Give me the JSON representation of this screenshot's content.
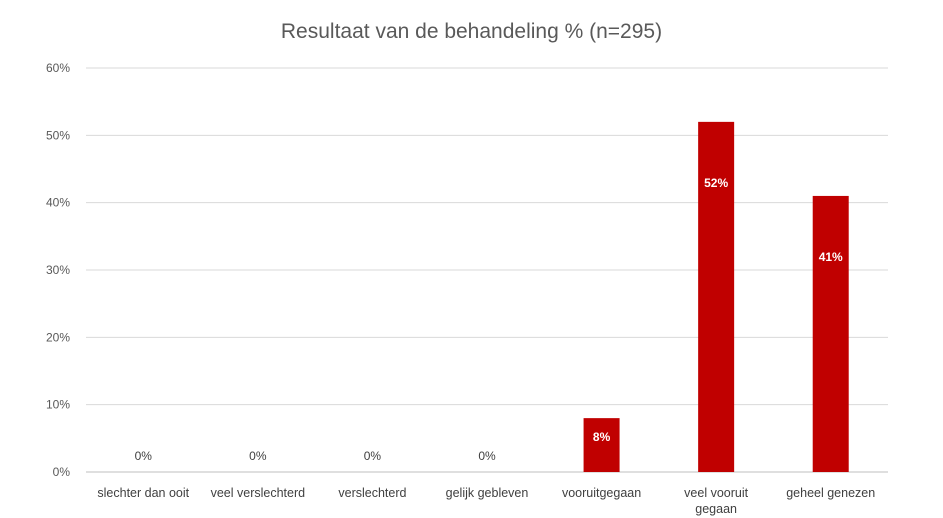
{
  "chart_data": {
    "type": "bar",
    "title": "Resultaat van de behandeling % (n=295)",
    "categories": [
      [
        "slechter dan ooit"
      ],
      [
        "veel verslechterd"
      ],
      [
        "verslechterd"
      ],
      [
        "gelijk gebleven"
      ],
      [
        "vooruitgegaan"
      ],
      [
        "veel vooruit",
        "gegaan"
      ],
      [
        "geheel genezen"
      ]
    ],
    "values": [
      0,
      0,
      0,
      0,
      8,
      52,
      41
    ],
    "data_labels": [
      "0%",
      "0%",
      "0%",
      "0%",
      "8%",
      "52%",
      "41%"
    ],
    "yticks": [
      "0%",
      "10%",
      "20%",
      "30%",
      "40%",
      "50%",
      "60%"
    ],
    "ylim": [
      0,
      60
    ],
    "grid": true,
    "legend": "none",
    "bar_color": "#c00000",
    "label_color_inside": "#ffffff",
    "label_color_outside": "#404040"
  }
}
